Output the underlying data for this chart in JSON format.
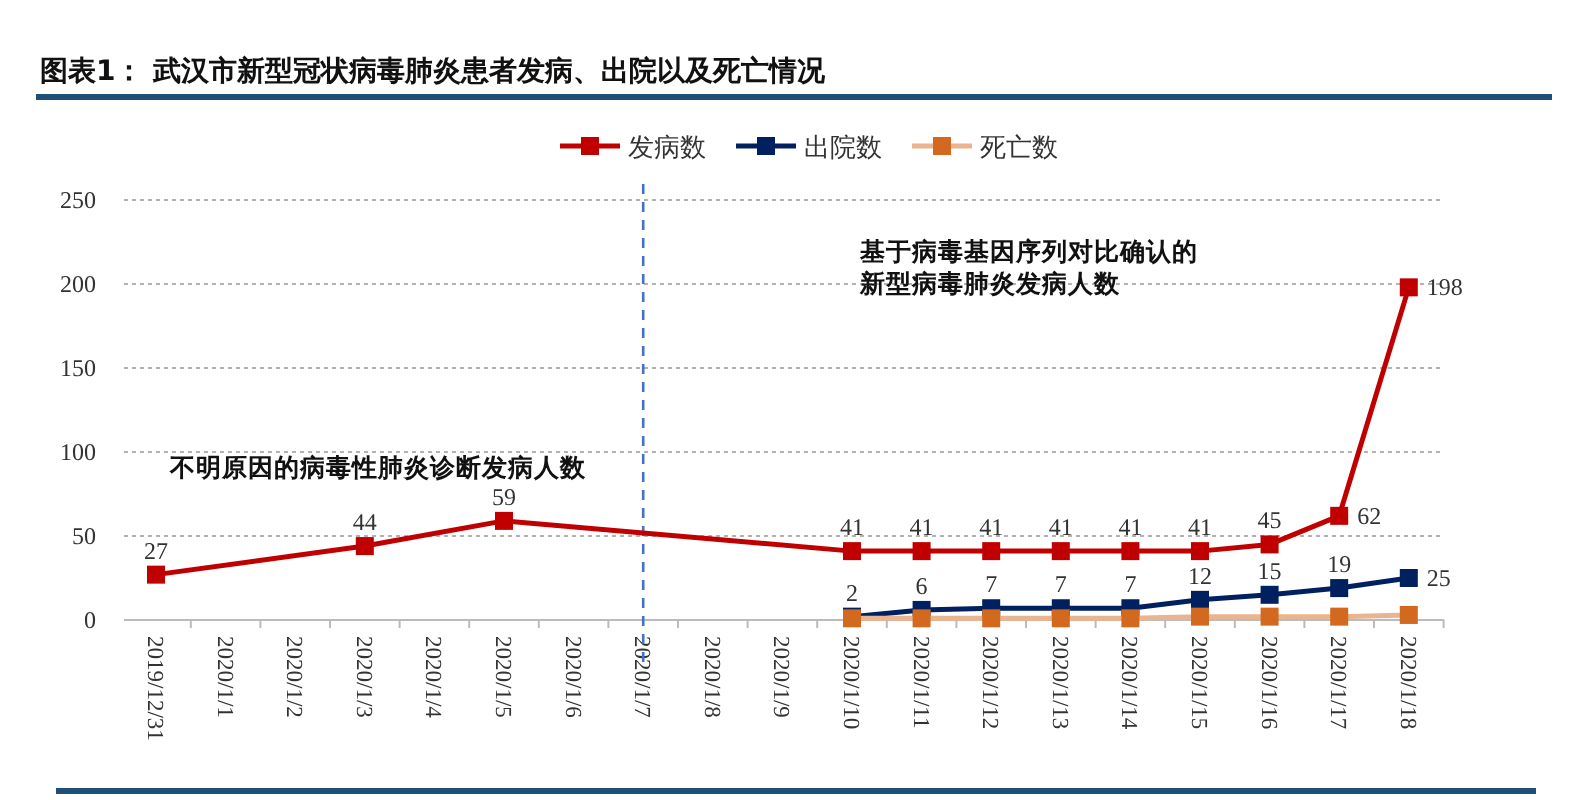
{
  "chart_data": {
    "type": "line",
    "title": "图表1：  武汉市新型冠状病毒肺炎患者发病、出院以及死亡情况",
    "categories": [
      "2019/12/31",
      "2020/1/1",
      "2020/1/2",
      "2020/1/3",
      "2020/1/4",
      "2020/1/5",
      "2020/1/6",
      "2020/1/7",
      "2020/1/8",
      "2020/1/9",
      "2020/1/10",
      "2020/1/11",
      "2020/1/12",
      "2020/1/13",
      "2020/1/14",
      "2020/1/15",
      "2020/1/16",
      "2020/1/17",
      "2020/1/18"
    ],
    "series": [
      {
        "name": "发病数",
        "color": "#c00000",
        "values": [
          27,
          null,
          null,
          44,
          null,
          59,
          null,
          null,
          null,
          null,
          41,
          41,
          41,
          41,
          41,
          41,
          45,
          62,
          198
        ],
        "value_labels": [
          "27",
          null,
          null,
          "44",
          null,
          "59",
          null,
          null,
          null,
          null,
          "41",
          "41",
          "41",
          "41",
          "41",
          "41",
          "45",
          "62",
          "198"
        ]
      },
      {
        "name": "出院数",
        "color": "#002060",
        "values": [
          null,
          null,
          null,
          null,
          null,
          null,
          null,
          null,
          null,
          null,
          2,
          6,
          7,
          7,
          7,
          12,
          15,
          19,
          25
        ],
        "value_labels": [
          null,
          null,
          null,
          null,
          null,
          null,
          null,
          null,
          null,
          null,
          "2",
          "6",
          "7",
          "7",
          "7",
          "12",
          "15",
          "19",
          "25"
        ]
      },
      {
        "name": "死亡数",
        "color": "#d2691e",
        "values": [
          null,
          null,
          null,
          null,
          null,
          null,
          null,
          null,
          null,
          null,
          1,
          1,
          1,
          1,
          1,
          2,
          2,
          2,
          3
        ]
      }
    ],
    "ref_lines": [
      {
        "axis": "x",
        "value": "2020/1/7",
        "color": "#4472c4",
        "line_style": "dashed"
      }
    ],
    "ylim": [
      0,
      250
    ],
    "yticks": [
      0,
      50,
      100,
      150,
      200,
      250
    ],
    "grid": "y",
    "legend": "top",
    "marker": "square",
    "annotations": [
      "不明原因的病毒性肺炎诊断发病人数",
      "基于病毒基因序列对比确认的新型病毒肺炎发病人数"
    ]
  }
}
